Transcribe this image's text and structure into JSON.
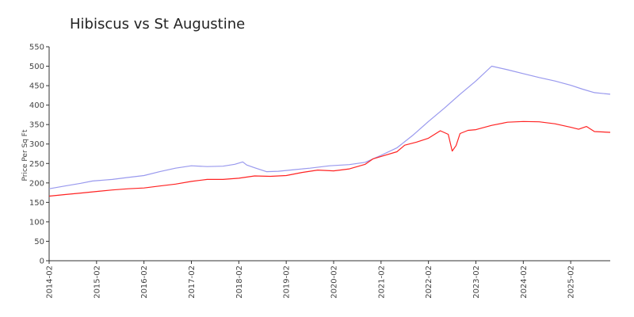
{
  "chart_data": {
    "type": "line",
    "title": "Hibiscus vs St Augustine",
    "xlabel": "",
    "ylabel": "Price Per Sq Ft",
    "xlim": [
      "2014-02",
      "2025-12"
    ],
    "ylim": [
      0,
      550
    ],
    "yticks": [
      0,
      50,
      100,
      150,
      200,
      250,
      300,
      350,
      400,
      450,
      500,
      550
    ],
    "xticks": [
      "2014-02",
      "2015-02",
      "2016-02",
      "2017-02",
      "2018-02",
      "2019-02",
      "2020-02",
      "2021-02",
      "2022-02",
      "2023-02",
      "2024-02",
      "2025-02"
    ],
    "grid": false,
    "legend": "none",
    "series": [
      {
        "color": "#9999ee",
        "points": [
          [
            "2014-02",
            185
          ],
          [
            "2014-06",
            192
          ],
          [
            "2014-10",
            199
          ],
          [
            "2015-01",
            205
          ],
          [
            "2015-06",
            209
          ],
          [
            "2015-10",
            214
          ],
          [
            "2016-02",
            219
          ],
          [
            "2016-06",
            229
          ],
          [
            "2016-10",
            238
          ],
          [
            "2017-02",
            244
          ],
          [
            "2017-06",
            242
          ],
          [
            "2017-10",
            243
          ],
          [
            "2018-01",
            248
          ],
          [
            "2018-03",
            254
          ],
          [
            "2018-04",
            246
          ],
          [
            "2018-06",
            239
          ],
          [
            "2018-09",
            229
          ],
          [
            "2018-12",
            230
          ],
          [
            "2019-04",
            234
          ],
          [
            "2019-08",
            238
          ],
          [
            "2020-01",
            244
          ],
          [
            "2020-06",
            247
          ],
          [
            "2020-10",
            253
          ],
          [
            "2021-02",
            271
          ],
          [
            "2021-06",
            290
          ],
          [
            "2021-10",
            322
          ],
          [
            "2022-02",
            358
          ],
          [
            "2022-06",
            392
          ],
          [
            "2022-10",
            428
          ],
          [
            "2023-02",
            462
          ],
          [
            "2023-06",
            500
          ],
          [
            "2023-10",
            491
          ],
          [
            "2024-02",
            481
          ],
          [
            "2024-06",
            471
          ],
          [
            "2024-10",
            462
          ],
          [
            "2025-02",
            451
          ],
          [
            "2025-05",
            441
          ],
          [
            "2025-08",
            432
          ],
          [
            "2025-12",
            428
          ]
        ]
      },
      {
        "color": "#ff2222",
        "points": [
          [
            "2014-02",
            166
          ],
          [
            "2014-06",
            170
          ],
          [
            "2014-10",
            174
          ],
          [
            "2015-02",
            178
          ],
          [
            "2015-06",
            182
          ],
          [
            "2015-10",
            185
          ],
          [
            "2016-02",
            187
          ],
          [
            "2016-06",
            192
          ],
          [
            "2016-10",
            197
          ],
          [
            "2017-02",
            204
          ],
          [
            "2017-06",
            209
          ],
          [
            "2017-10",
            209
          ],
          [
            "2018-02",
            212
          ],
          [
            "2018-06",
            218
          ],
          [
            "2018-10",
            217
          ],
          [
            "2019-02",
            219
          ],
          [
            "2019-06",
            227
          ],
          [
            "2019-10",
            233
          ],
          [
            "2020-02",
            231
          ],
          [
            "2020-06",
            236
          ],
          [
            "2020-10",
            248
          ],
          [
            "2020-12",
            262
          ],
          [
            "2021-02",
            268
          ],
          [
            "2021-06",
            280
          ],
          [
            "2021-08",
            297
          ],
          [
            "2021-11",
            305
          ],
          [
            "2022-02",
            315
          ],
          [
            "2022-05",
            334
          ],
          [
            "2022-07",
            325
          ],
          [
            "2022-08",
            282
          ],
          [
            "2022-09",
            296
          ],
          [
            "2022-10",
            327
          ],
          [
            "2022-12",
            335
          ],
          [
            "2023-02",
            337
          ],
          [
            "2023-06",
            348
          ],
          [
            "2023-10",
            356
          ],
          [
            "2024-02",
            358
          ],
          [
            "2024-06",
            357
          ],
          [
            "2024-10",
            352
          ],
          [
            "2025-02",
            343
          ],
          [
            "2025-04",
            338
          ],
          [
            "2025-06",
            345
          ],
          [
            "2025-08",
            332
          ],
          [
            "2025-12",
            330
          ]
        ]
      }
    ]
  }
}
